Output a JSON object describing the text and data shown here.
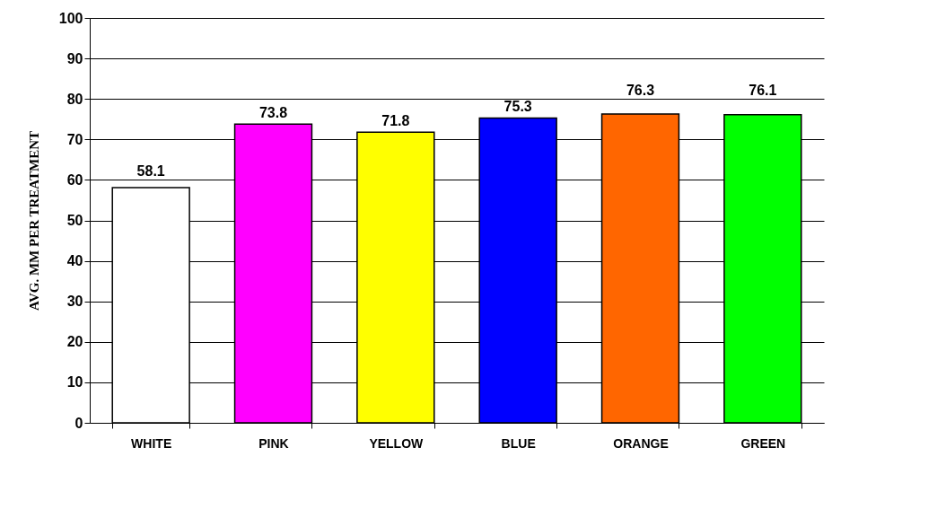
{
  "chart_data": {
    "type": "bar",
    "ylabel": "AVG. MM PER TREATMENT",
    "categories": [
      "WHITE",
      "PINK",
      "YELLOW",
      "BLUE",
      "ORANGE",
      "GREEN"
    ],
    "values": [
      58.1,
      73.8,
      71.8,
      75.3,
      76.3,
      76.1
    ],
    "colors": [
      "#ffffff",
      "#ff00ff",
      "#ffff00",
      "#0000ff",
      "#ff6600",
      "#00ff00"
    ],
    "ylim": [
      0,
      100
    ],
    "yticks": [
      0,
      10,
      20,
      30,
      40,
      50,
      60,
      70,
      80,
      90,
      100
    ],
    "grid": "y",
    "data_labels": true
  }
}
